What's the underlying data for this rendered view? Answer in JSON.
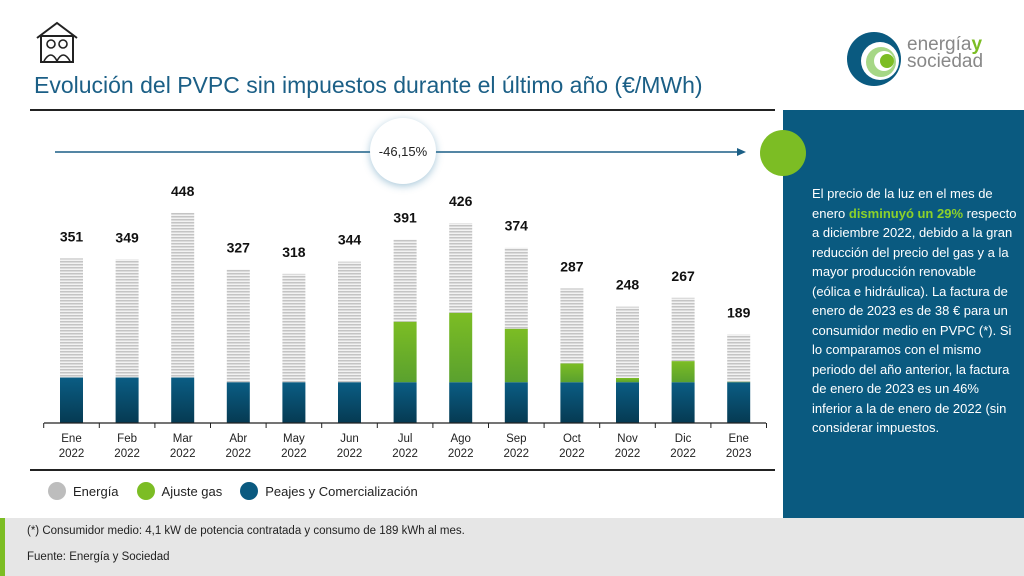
{
  "header": {
    "title": "Evolución del PVPC sin impuestos durante el último año (€/MWh)",
    "icon": "house-family-icon"
  },
  "logo": {
    "line1": "energía",
    "accent": "y",
    "line2": "sociedad"
  },
  "change_badge": "-46,15%",
  "panel": {
    "text_before": "El precio de la luz en el mes de enero ",
    "highlight": "disminuyó un 29%",
    "text_after": " respecto a diciembre 2022, debido a la gran reducción del precio del gas y a la mayor producción renovable (eólica e hidráulica). La factura de enero de 2023 es de 38 € para un consumidor medio en PVPC (*). Si lo comparamos con el mismo periodo del año anterior, la factura de enero de 2023 es un 46% inferior a la de enero de 2022 (sin considerar impuestos."
  },
  "footer": {
    "note": "(*) Consumidor medio: 4,1 kW de potencia contratada y consumo de 189 kWh al mes.",
    "source": "Fuente: Energía y Sociedad"
  },
  "colors": {
    "energia": "#c8c8c8",
    "ajuste_gas": "#7cbd24",
    "peajes": "#0a5a80",
    "panel": "#0a5a80"
  },
  "chart_data": {
    "type": "bar",
    "stacked": true,
    "categories": [
      [
        "Ene",
        "2022"
      ],
      [
        "Feb",
        "2022"
      ],
      [
        "Mar",
        "2022"
      ],
      [
        "Abr",
        "2022"
      ],
      [
        "May",
        "2022"
      ],
      [
        "Jun",
        "2022"
      ],
      [
        "Jul",
        "2022"
      ],
      [
        "Ago",
        "2022"
      ],
      [
        "Sep",
        "2022"
      ],
      [
        "Oct",
        "2022"
      ],
      [
        "Nov",
        "2022"
      ],
      [
        "Dic",
        "2022"
      ],
      [
        "Ene",
        "2023"
      ]
    ],
    "totals": [
      351,
      349,
      448,
      327,
      318,
      344,
      391,
      426,
      374,
      287,
      248,
      267,
      189
    ],
    "series": [
      {
        "name": "Peajes y Comercialización",
        "values": [
          97,
          97,
          97,
          87,
          87,
          87,
          87,
          87,
          87,
          87,
          87,
          87,
          87
        ]
      },
      {
        "name": "Ajuste gas",
        "values": [
          0,
          0,
          0,
          0,
          0,
          0,
          129,
          148,
          114,
          40,
          9,
          45,
          1
        ]
      },
      {
        "name": "Energía",
        "values": [
          254,
          252,
          351,
          240,
          231,
          257,
          175,
          191,
          173,
          160,
          152,
          135,
          101
        ]
      }
    ],
    "legend_order": [
      "Energía",
      "Ajuste gas",
      "Peajes y Comercialización"
    ],
    "ylim": [
      0,
      460
    ],
    "grid": false,
    "legend_position": "bottom-left"
  }
}
